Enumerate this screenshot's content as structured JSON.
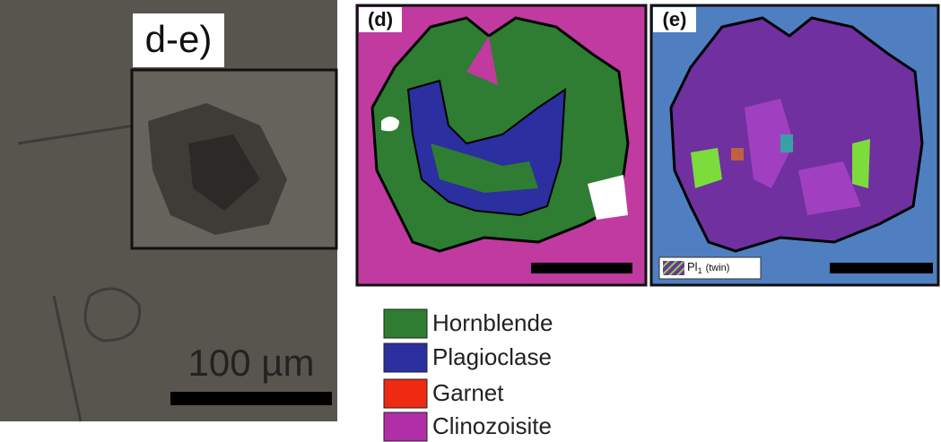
{
  "inset_label": "d-e)",
  "scale_label": "100 µm",
  "panels": [
    {
      "label": "(d)"
    },
    {
      "label": "(e)",
      "key": {
        "symbol": "Pl",
        "subscript": "1",
        "suffix": "(twin)"
      }
    }
  ],
  "legend": [
    {
      "label": "Hornblende",
      "color": "#2e7d32"
    },
    {
      "label": "Plagioclase",
      "color": "#2b2fa0"
    },
    {
      "label": "Garnet",
      "color": "#ee2a12"
    },
    {
      "label": "Clinozoisite",
      "color": "#b02fa8"
    }
  ]
}
